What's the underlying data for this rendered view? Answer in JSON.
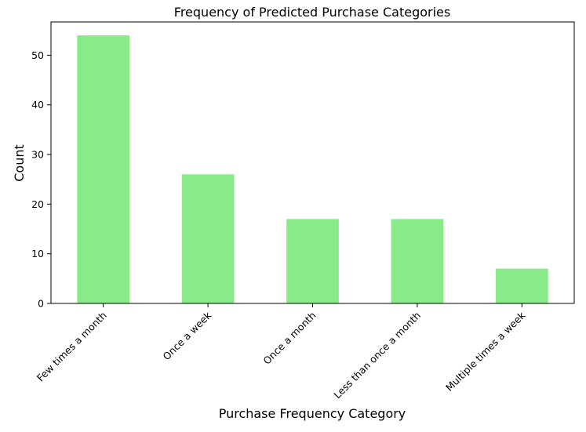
{
  "chart_data": {
    "type": "bar",
    "title": "Frequency of Predicted Purchase Categories",
    "xlabel": "Purchase Frequency Category",
    "ylabel": "Count",
    "categories": [
      "Few times a month",
      "Once a week",
      "Once a month",
      "Less than once a month",
      "Multiple times a week"
    ],
    "values": [
      54,
      26,
      17,
      17,
      7
    ],
    "ylim": [
      0,
      56.7
    ],
    "yticks": [
      "0",
      "10",
      "20",
      "30",
      "40",
      "50"
    ],
    "grid": false,
    "bar_color": "#88ea88",
    "legend": "none"
  }
}
